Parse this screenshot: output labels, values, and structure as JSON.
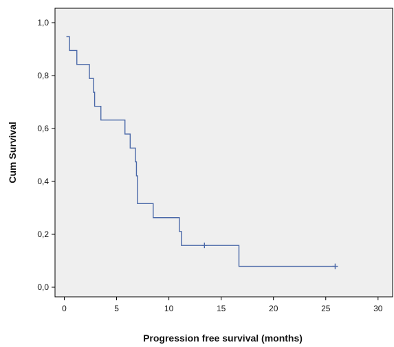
{
  "chart_data": {
    "type": "line",
    "subtype": "kaplan-meier-step",
    "xlabel": "Progression free survival (months)",
    "ylabel": "Cum Survival",
    "xlim": [
      0,
      30
    ],
    "ylim": [
      0,
      1
    ],
    "x_ticks": [
      0,
      5,
      10,
      15,
      20,
      25,
      30
    ],
    "y_ticks": [
      0,
      0.2,
      0.4,
      0.6,
      0.8,
      1.0
    ],
    "x_tick_labels": [
      "0",
      "5",
      "10",
      "15",
      "20",
      "25",
      "30"
    ],
    "y_tick_labels": [
      "0,0",
      "0,2",
      "0,4",
      "0,6",
      "0,8",
      "1,0"
    ],
    "grid": false,
    "plot_background": "#efefef",
    "line_color": "#4a68a8",
    "series": [
      {
        "steps": [
          {
            "x": 0.2,
            "y": 0.947
          },
          {
            "x": 0.5,
            "y": 0.895
          },
          {
            "x": 1.2,
            "y": 0.842
          },
          {
            "x": 2.4,
            "y": 0.789
          },
          {
            "x": 2.8,
            "y": 0.737
          },
          {
            "x": 2.9,
            "y": 0.684
          },
          {
            "x": 3.5,
            "y": 0.632
          },
          {
            "x": 5.8,
            "y": 0.579
          },
          {
            "x": 6.3,
            "y": 0.526
          },
          {
            "x": 6.8,
            "y": 0.474
          },
          {
            "x": 6.9,
            "y": 0.421
          },
          {
            "x": 7.0,
            "y": 0.316
          },
          {
            "x": 8.5,
            "y": 0.263
          },
          {
            "x": 11.0,
            "y": 0.211
          },
          {
            "x": 11.2,
            "y": 0.158
          },
          {
            "x": 16.7,
            "y": 0.079
          }
        ],
        "end_x": 25.9,
        "censored": [
          {
            "x": 13.4,
            "y": 0.158
          },
          {
            "x": 25.9,
            "y": 0.079
          }
        ]
      }
    ]
  }
}
